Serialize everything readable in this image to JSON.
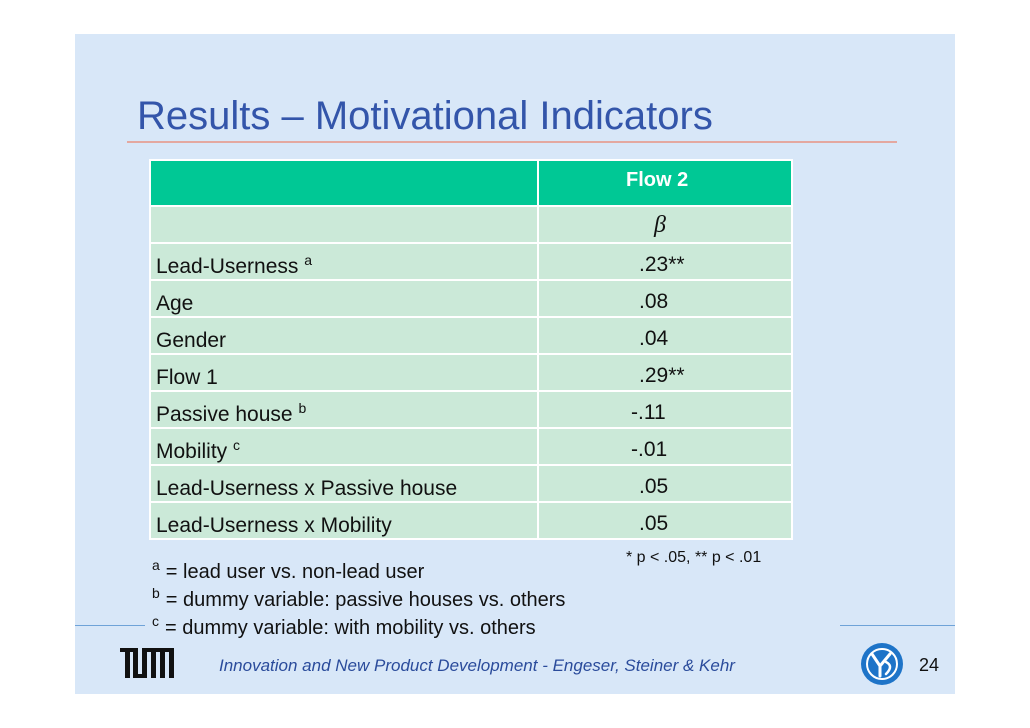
{
  "slide": {
    "title": "Results – Motivational Indicators",
    "page_number": "24",
    "footer": "Innovation and New Product Development - Engeser, Steiner & Kehr"
  },
  "table": {
    "column_header": "Flow 2",
    "beta_symbol": "β",
    "rows": [
      {
        "label": "Lead-Userness",
        "sup": "a",
        "value": ".23**"
      },
      {
        "label": "Age",
        "sup": "",
        "value": ".08"
      },
      {
        "label": "Gender",
        "sup": "",
        "value": ".04"
      },
      {
        "label": "Flow 1",
        "sup": "",
        "value": ".29**"
      },
      {
        "label": "Passive house",
        "sup": "b",
        "value": "-.11"
      },
      {
        "label": "Mobility",
        "sup": "c",
        "value": "-.01"
      },
      {
        "label": "Lead-Userness x Passive house",
        "sup": "",
        "value": ".05"
      },
      {
        "label": "Lead-Userness x Mobility",
        "sup": "",
        "value": ".05"
      }
    ],
    "significance_note": "* p < .05, ** p < .01"
  },
  "footnotes": [
    {
      "mark": "a",
      "text": "= lead user vs. non-lead user"
    },
    {
      "mark": "b",
      "text": "= dummy variable: passive houses vs. others"
    },
    {
      "mark": "c",
      "text": "= dummy variable: with mobility vs. others"
    }
  ],
  "logos": {
    "left": "TUM-logo",
    "right": "university-emblem-icon"
  },
  "colors": {
    "slide_background": "#d8e7f8",
    "title": "#3355aa",
    "header_fill": "#00c895",
    "row_fill": "#cbe9d8",
    "footer_text": "#2a4b9b"
  }
}
